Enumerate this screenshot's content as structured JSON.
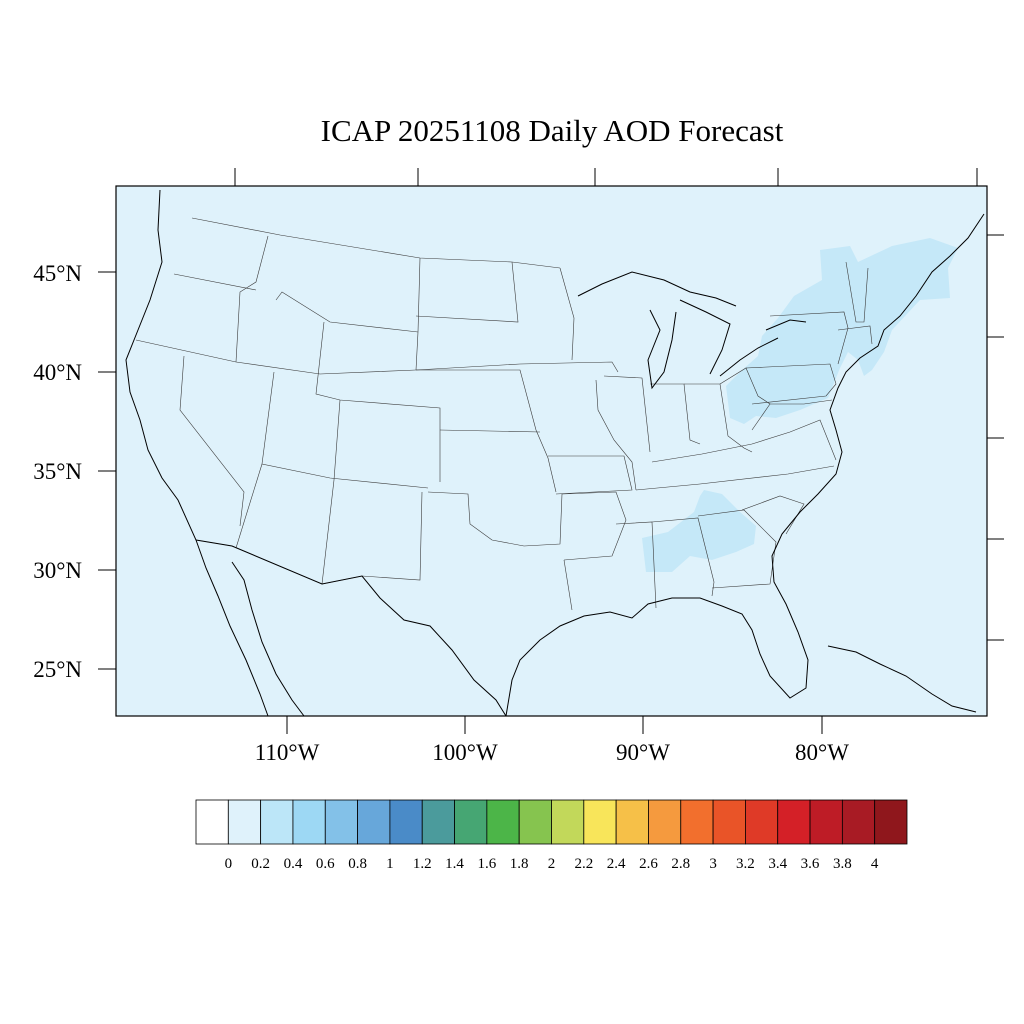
{
  "title": "ICAP 20251108 Daily AOD Forecast",
  "background_color": "#dff2fb",
  "lat_labels": [
    "45°N",
    "40°N",
    "35°N",
    "30°N",
    "25°N"
  ],
  "lon_labels": [
    "110°W",
    "100°W",
    "90°W",
    "80°W"
  ],
  "colorbar": {
    "colors": [
      "#ffffff",
      "#dff2fb",
      "#bce6f8",
      "#9dd8f4",
      "#83c1e8",
      "#67a7da",
      "#4a8bc8",
      "#4b9b9c",
      "#46a673",
      "#4cb548",
      "#86c44f",
      "#c2d85a",
      "#f8e55a",
      "#f6c048",
      "#f59a3e",
      "#f26f2d",
      "#e95428",
      "#df3a27",
      "#d42027",
      "#be1c26",
      "#a81b24",
      "#8f171c"
    ],
    "labels": [
      "0",
      "0.2",
      "0.4",
      "0.6",
      "0.8",
      "1",
      "1.2",
      "1.4",
      "1.6",
      "1.8",
      "2",
      "2.2",
      "2.4",
      "2.6",
      "2.8",
      "3",
      "3.2",
      "3.4",
      "3.6",
      "3.8",
      "4"
    ]
  },
  "elevated_region_color": "#c5e8f8"
}
